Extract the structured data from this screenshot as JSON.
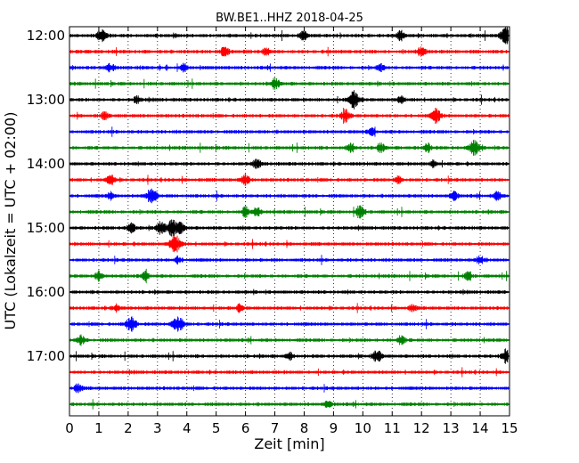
{
  "chart_data": {
    "type": "line",
    "title": "BW.BE1..HHZ 2018-04-25",
    "xlabel": "Zeit  [min]",
    "ylabel": "UTC (Lokalzeit = UTC + 02:00)",
    "xlim": [
      0,
      15
    ],
    "x_ticks": [
      "0",
      "1",
      "2",
      "3",
      "4",
      "5",
      "6",
      "7",
      "8",
      "9",
      "10",
      "11",
      "12",
      "13",
      "14",
      "15"
    ],
    "y_ticks": [
      "12:00",
      "13:00",
      "14:00",
      "15:00",
      "16:00",
      "17:00"
    ],
    "grid": "vertical dotted",
    "trace_colors": [
      "#000000",
      "#ff0000",
      "#0000ff",
      "#008000"
    ],
    "traces": [
      {
        "start": "12:00",
        "events": [
          [
            1.1,
            0.7
          ],
          [
            8.0,
            0.6
          ],
          [
            11.3,
            0.6
          ],
          [
            14.9,
            1.0
          ]
        ]
      },
      {
        "start": "12:15",
        "events": [
          [
            5.3,
            0.6
          ],
          [
            6.7,
            0.4
          ],
          [
            12.0,
            0.6
          ]
        ]
      },
      {
        "start": "12:30",
        "events": [
          [
            1.4,
            0.5
          ],
          [
            3.9,
            0.4
          ],
          [
            10.6,
            0.4
          ]
        ]
      },
      {
        "start": "12:45",
        "events": [
          [
            7.0,
            0.6
          ]
        ]
      },
      {
        "start": "13:00",
        "events": [
          [
            2.3,
            0.4
          ],
          [
            9.7,
            1.0
          ],
          [
            11.3,
            0.4
          ]
        ]
      },
      {
        "start": "13:15",
        "events": [
          [
            1.2,
            0.4
          ],
          [
            9.4,
            0.7
          ],
          [
            12.5,
            0.8
          ]
        ]
      },
      {
        "start": "13:30",
        "events": [
          [
            10.3,
            0.4
          ]
        ]
      },
      {
        "start": "13:45",
        "events": [
          [
            9.6,
            0.5
          ],
          [
            10.6,
            0.5
          ],
          [
            12.2,
            0.5
          ],
          [
            13.8,
            0.9
          ]
        ]
      },
      {
        "start": "14:00",
        "events": [
          [
            6.4,
            0.5
          ],
          [
            12.4,
            0.4
          ]
        ]
      },
      {
        "start": "14:15",
        "events": [
          [
            1.4,
            0.6
          ],
          [
            6.0,
            0.6
          ],
          [
            11.2,
            0.4
          ]
        ]
      },
      {
        "start": "14:30",
        "events": [
          [
            1.4,
            0.4
          ],
          [
            2.8,
            0.9
          ],
          [
            13.1,
            0.5
          ],
          [
            14.6,
            0.5
          ]
        ]
      },
      {
        "start": "14:45",
        "events": [
          [
            6.0,
            0.6
          ],
          [
            6.4,
            0.5
          ],
          [
            9.9,
            0.7
          ]
        ]
      },
      {
        "start": "15:00",
        "events": [
          [
            2.1,
            0.6
          ],
          [
            3.1,
            0.7
          ],
          [
            3.5,
            1.0
          ],
          [
            3.8,
            0.6
          ]
        ]
      },
      {
        "start": "15:15",
        "events": [
          [
            3.6,
            1.0
          ]
        ]
      },
      {
        "start": "15:30",
        "events": [
          [
            3.7,
            0.4
          ],
          [
            14.0,
            0.5
          ]
        ]
      },
      {
        "start": "15:45",
        "events": [
          [
            1.0,
            0.5
          ],
          [
            2.6,
            0.5
          ],
          [
            13.6,
            0.5
          ]
        ]
      },
      {
        "start": "16:00",
        "events": []
      },
      {
        "start": "16:15",
        "events": [
          [
            1.6,
            0.4
          ],
          [
            5.8,
            0.4
          ],
          [
            11.7,
            0.4
          ]
        ]
      },
      {
        "start": "16:30",
        "events": [
          [
            2.1,
            0.9
          ],
          [
            3.7,
            1.0
          ]
        ]
      },
      {
        "start": "16:45",
        "events": [
          [
            0.4,
            0.5
          ],
          [
            11.3,
            0.5
          ]
        ]
      },
      {
        "start": "17:00",
        "events": [
          [
            7.5,
            0.4
          ],
          [
            10.5,
            0.7
          ],
          [
            14.9,
            0.8
          ]
        ]
      },
      {
        "start": "17:15",
        "events": []
      },
      {
        "start": "17:30",
        "events": [
          [
            0.3,
            0.5
          ]
        ]
      },
      {
        "start": "17:45",
        "events": [
          [
            8.8,
            0.4
          ]
        ]
      }
    ]
  }
}
